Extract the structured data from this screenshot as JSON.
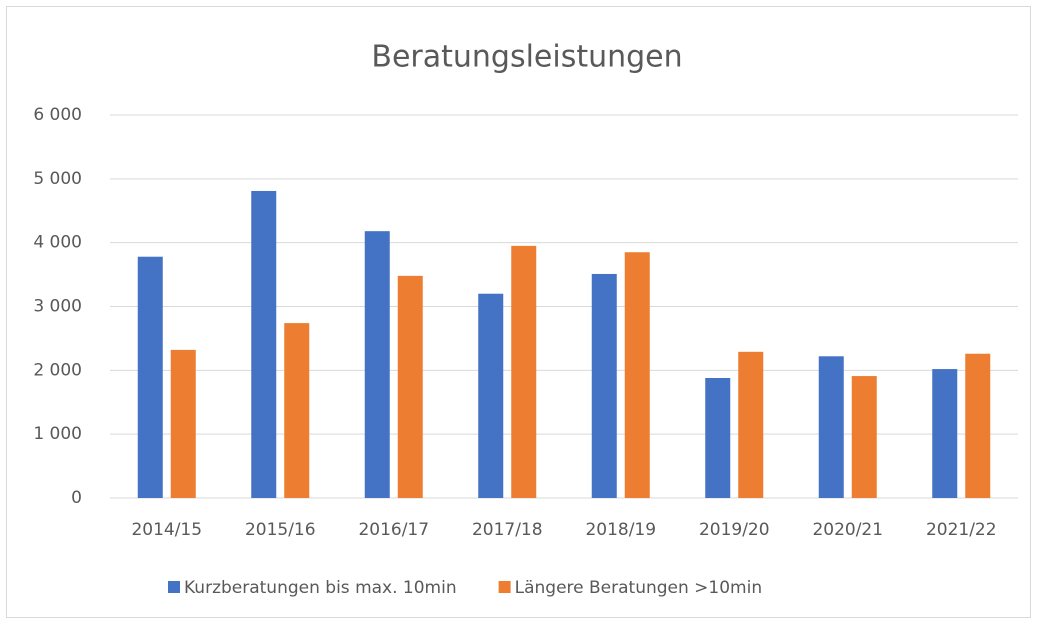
{
  "chart_data": {
    "type": "bar",
    "title": "Beratungsleistungen",
    "categories": [
      "2014/15",
      "2015/16",
      "2016/17",
      "2017/18",
      "2018/19",
      "2019/20",
      "2020/21",
      "2021/22"
    ],
    "series": [
      {
        "name": "Kurzberatungen bis max. 10min",
        "color": "#4472c4",
        "values": [
          3780,
          4810,
          4180,
          3200,
          3510,
          1880,
          2220,
          2020
        ]
      },
      {
        "name": "Längere Beratungen >10min",
        "color": "#ed7d31",
        "values": [
          2320,
          2740,
          3480,
          3950,
          3850,
          2290,
          1910,
          2260
        ]
      }
    ],
    "ylim": [
      0,
      6000
    ],
    "yticks": [
      0,
      {
        "value": 1000,
        "label": "1 000"
      },
      {
        "value": 2000,
        "label": "2 000"
      },
      {
        "value": 3000,
        "label": "3 000"
      },
      {
        "value": 4000,
        "label": "4 000"
      },
      {
        "value": 5000,
        "label": "5 000"
      },
      {
        "value": 6000,
        "label": "6 000"
      }
    ],
    "grid": true,
    "legend": "bottom"
  }
}
